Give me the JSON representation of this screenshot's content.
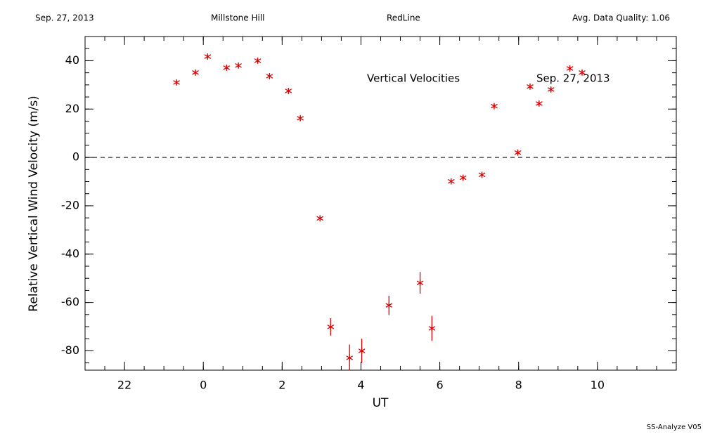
{
  "chart_data": {
    "type": "scatter",
    "header": [
      "Sep. 27, 2013",
      "Millstone Hill",
      "RedLine",
      "Avg. Data Quality: 1.06"
    ],
    "annotations": [
      "Vertical Velocities",
      "Sep. 27, 2013"
    ],
    "footer": "SS-Analyze V05",
    "xlabel": "UT",
    "ylabel": "Relative Vertical Wind Velocity (m/s)",
    "x": [
      -0.68,
      -0.2,
      0.11,
      0.59,
      0.89,
      1.38,
      1.68,
      2.16,
      2.46,
      2.96,
      3.23,
      3.71,
      4.02,
      4.71,
      5.5,
      5.8,
      6.29,
      6.59,
      7.07,
      7.38,
      7.98,
      8.29,
      8.52,
      8.82,
      9.3,
      9.61
    ],
    "values": [
      31.0,
      35.1,
      41.7,
      37.1,
      38.0,
      40.0,
      33.6,
      27.5,
      16.2,
      -25.2,
      -70.1,
      -82.9,
      -80.0,
      -61.2,
      -51.9,
      -70.7,
      -9.9,
      -8.4,
      -7.2,
      21.2,
      2.0,
      29.3,
      22.3,
      28.1,
      36.8,
      35.1
    ],
    "errors": [
      1,
      1,
      1,
      1,
      1,
      1,
      1,
      1,
      1,
      1,
      3.6,
      5.5,
      5,
      4,
      4.5,
      5.2,
      1,
      1,
      1,
      1,
      1,
      1,
      1,
      1,
      1,
      1
    ],
    "color": "#dd0000",
    "reference_line": 0,
    "xlim": [
      -3,
      12
    ],
    "xticks": [
      {
        "value": -2,
        "label": "22"
      },
      0,
      2,
      4,
      6,
      8,
      10
    ],
    "ylim": [
      -88,
      50
    ],
    "yticks": [
      -80,
      -60,
      -40,
      -20,
      0,
      20,
      40
    ]
  }
}
